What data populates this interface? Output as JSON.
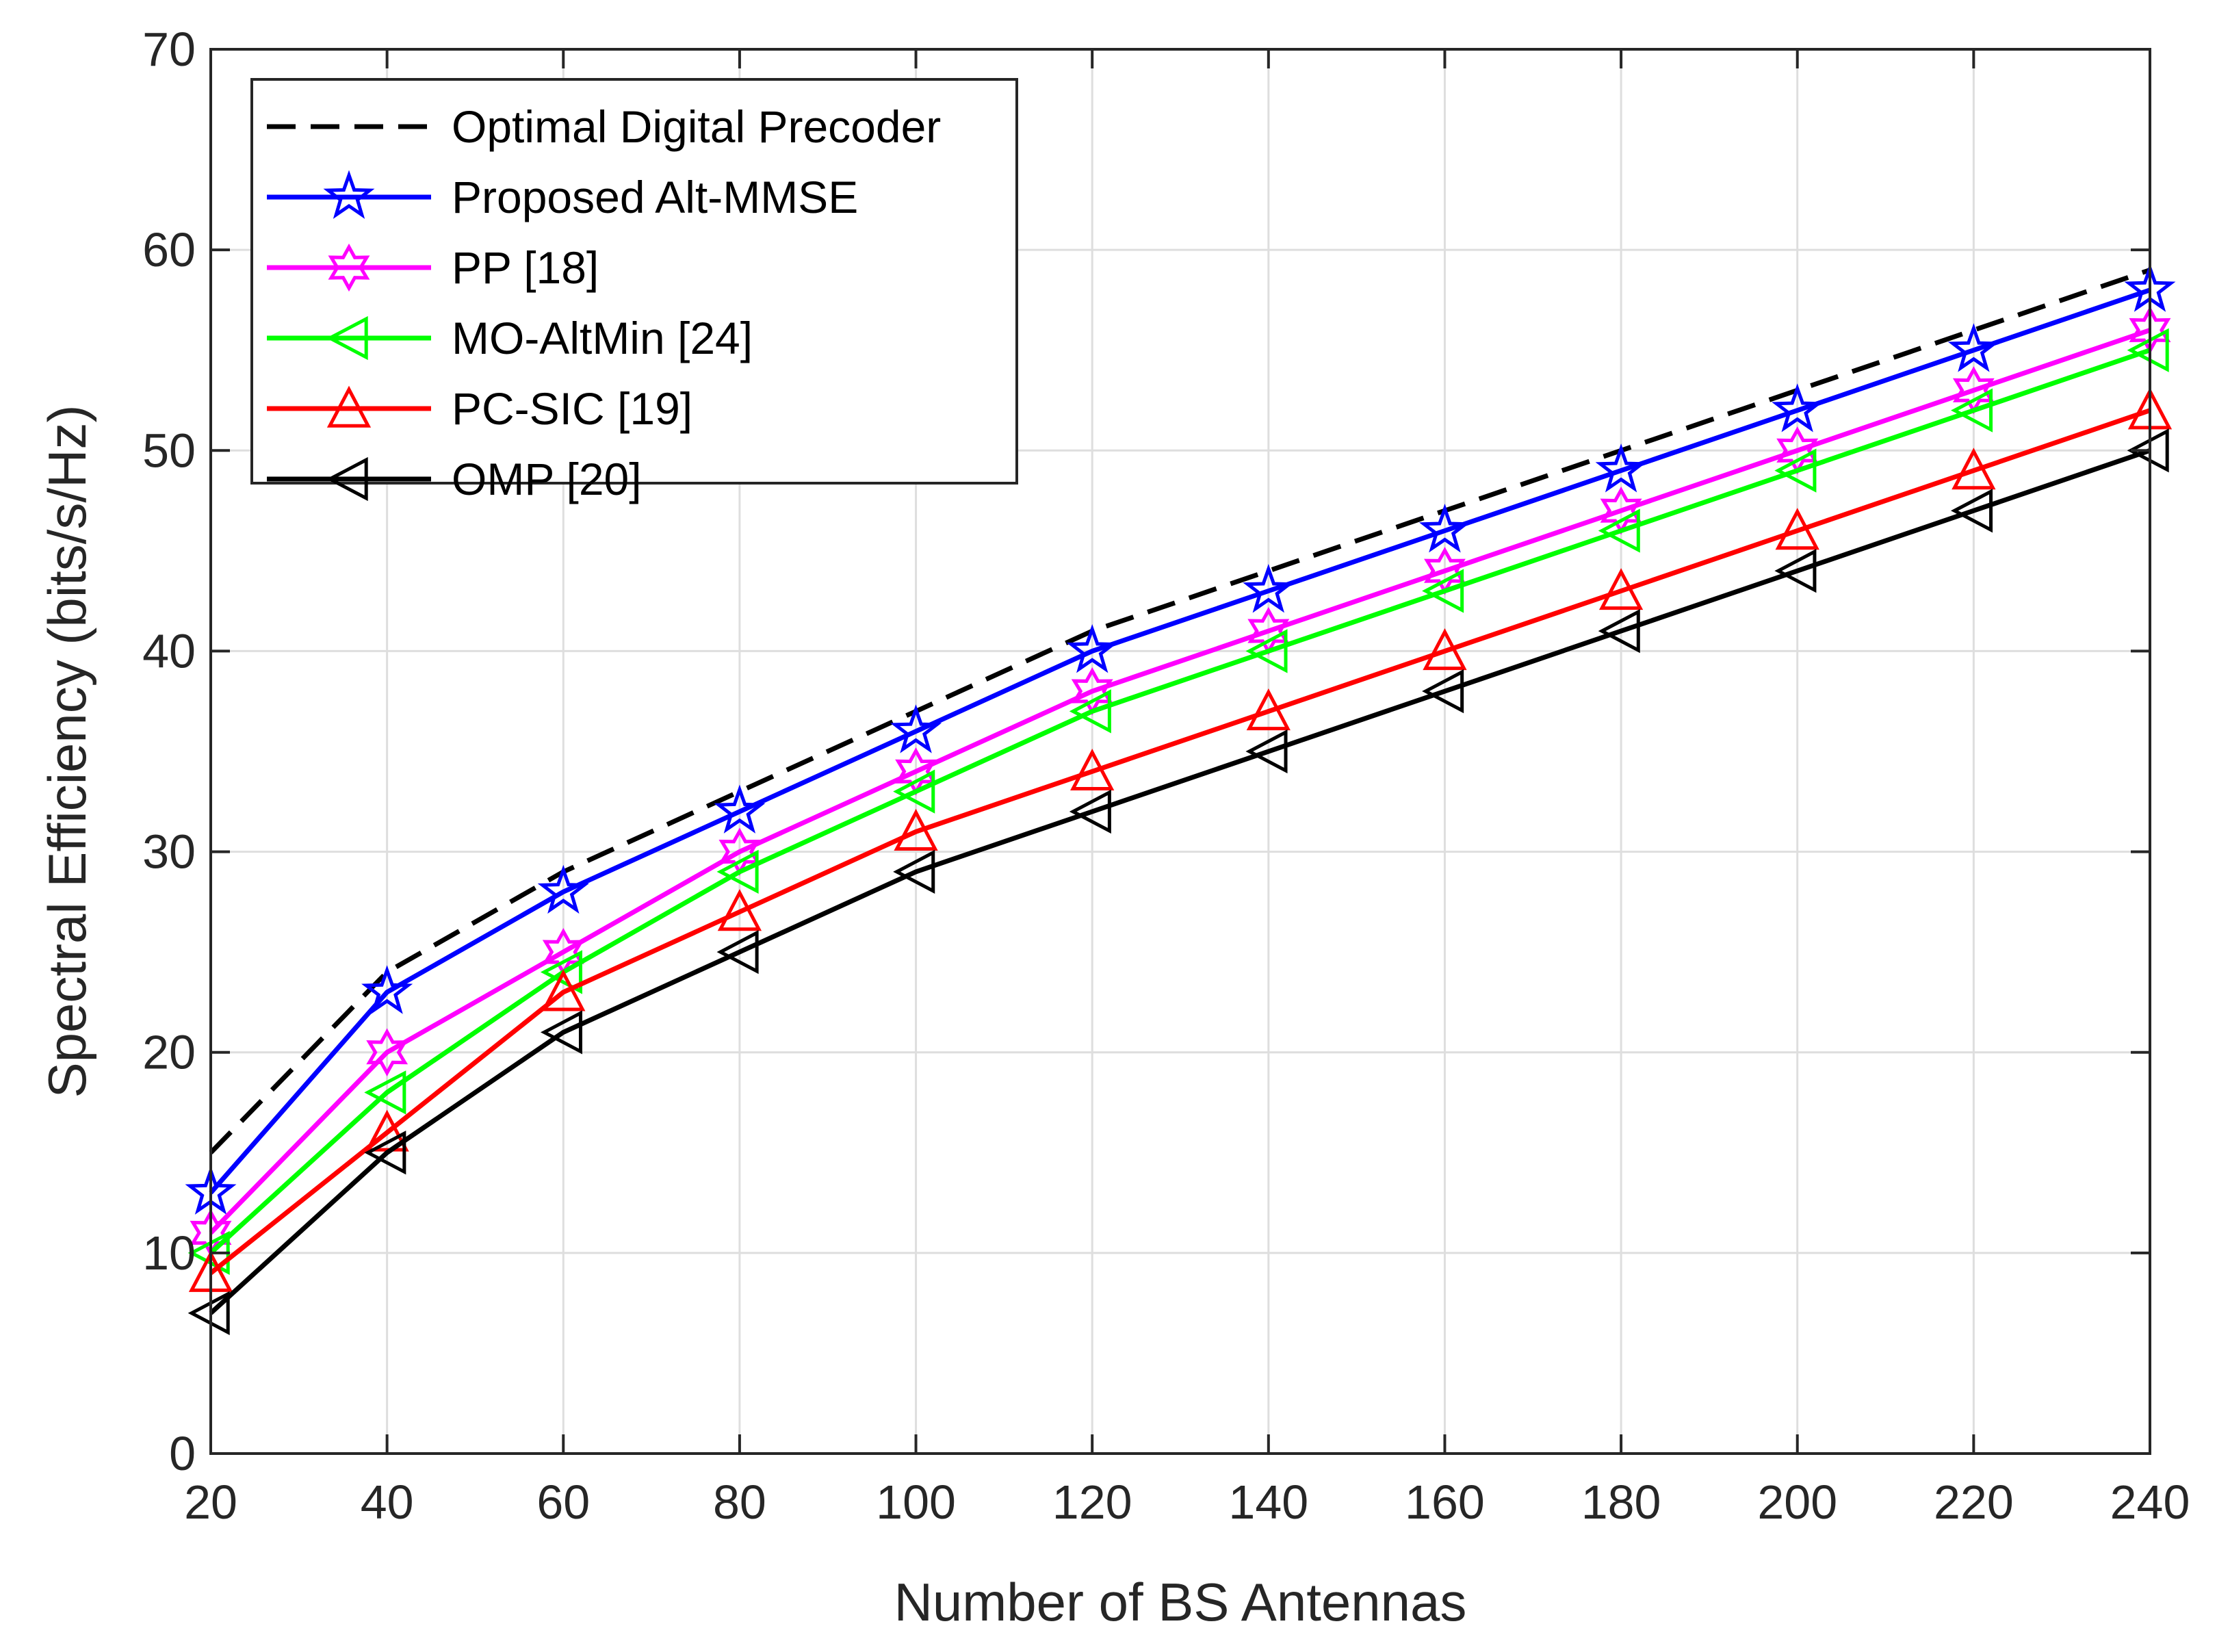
{
  "chart_data": {
    "type": "line",
    "title": "",
    "xlabel": "Number of BS Antennas",
    "ylabel": "Spectral Efficiency (bits/s/Hz)",
    "xlim": [
      20,
      240
    ],
    "ylim": [
      0,
      70
    ],
    "xticks": [
      20,
      40,
      60,
      80,
      100,
      120,
      140,
      160,
      180,
      200,
      220,
      240
    ],
    "yticks": [
      0,
      10,
      20,
      30,
      40,
      50,
      60,
      70
    ],
    "grid": true,
    "legend_position": "top-left",
    "x": [
      20,
      40,
      60,
      80,
      100,
      120,
      140,
      160,
      180,
      200,
      220,
      240
    ],
    "series": [
      {
        "name": "Optimal Digital Precoder",
        "color": "#000000",
        "marker": "none",
        "dashed": true,
        "values": [
          15,
          24,
          29,
          33,
          37,
          41,
          44,
          47,
          50,
          53,
          56,
          59
        ]
      },
      {
        "name": "Proposed Alt-MMSE",
        "color": "#0000ff",
        "marker": "pentagram",
        "dashed": false,
        "values": [
          13,
          23,
          28,
          32,
          36,
          40,
          43,
          46,
          49,
          52,
          55,
          58
        ]
      },
      {
        "name": "PP [18]",
        "color": "#ff00ff",
        "marker": "hexagram",
        "dashed": false,
        "values": [
          11,
          20,
          25,
          30,
          34,
          38,
          41,
          44,
          47,
          50,
          53,
          56
        ]
      },
      {
        "name": "MO-AltMin [24]",
        "color": "#00ff00",
        "marker": "triangle-left",
        "dashed": false,
        "values": [
          10,
          18,
          24,
          29,
          33,
          37,
          40,
          43,
          46,
          49,
          52,
          55
        ]
      },
      {
        "name": "PC-SIC [19]",
        "color": "#ff0000",
        "marker": "triangle-up",
        "dashed": false,
        "values": [
          9,
          16,
          23,
          27,
          31,
          34,
          37,
          40,
          43,
          46,
          49,
          52
        ]
      },
      {
        "name": "OMP [20]",
        "color": "#000000",
        "marker": "triangle-left",
        "dashed": false,
        "values": [
          7,
          15,
          21,
          25,
          29,
          32,
          35,
          38,
          41,
          44,
          47,
          50
        ]
      }
    ]
  }
}
